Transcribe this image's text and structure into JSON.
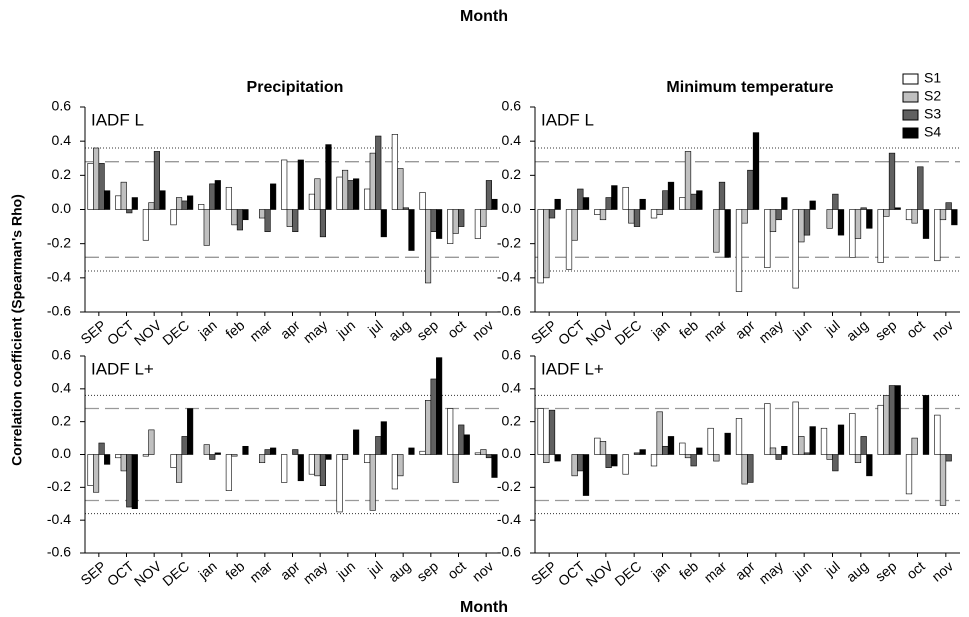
{
  "title": "Month",
  "x_label": "Month",
  "y_label": "Correlation coefficient (Spearman's Rho)",
  "reference_lines": [
    {
      "value": 0.36,
      "style": "dotted"
    },
    {
      "value": -0.36,
      "style": "dotted"
    },
    {
      "value": 0.28,
      "style": "dashed"
    },
    {
      "value": -0.28,
      "style": "dashed"
    }
  ],
  "chart_data": [
    {
      "type": "bar",
      "title": "Precipitation",
      "annotation": "IADF L",
      "categories": [
        "SEP",
        "OCT",
        "NOV",
        "DEC",
        "jan",
        "feb",
        "mar",
        "apr",
        "may",
        "jun",
        "jul",
        "aug",
        "sep",
        "oct",
        "nov"
      ],
      "ylim": [
        -0.6,
        0.6
      ],
      "yticks": [
        0.6,
        0.4,
        0.2,
        {
          "value": 0,
          "label": "0.0"
        },
        -0.2,
        -0.4,
        -0.6
      ],
      "series": [
        {
          "name": "S1",
          "color": "#ffffff",
          "values": [
            0.27,
            0.08,
            -0.18,
            -0.09,
            0.03,
            0.13,
            0.0,
            0.29,
            0.09,
            0.19,
            0.12,
            0.44,
            0.1,
            -0.2,
            -0.17
          ]
        },
        {
          "name": "S2",
          "color": "#c0c0c0",
          "values": [
            0.36,
            0.16,
            0.04,
            0.07,
            -0.21,
            -0.09,
            -0.05,
            -0.1,
            0.18,
            0.23,
            0.33,
            0.24,
            -0.43,
            -0.14,
            -0.1
          ]
        },
        {
          "name": "S3",
          "color": "#606060",
          "values": [
            0.27,
            -0.02,
            0.34,
            0.05,
            0.15,
            -0.12,
            -0.13,
            -0.13,
            -0.16,
            0.17,
            0.43,
            0.01,
            -0.13,
            -0.1,
            0.17
          ]
        },
        {
          "name": "S4",
          "color": "#000000",
          "values": [
            0.11,
            0.07,
            0.11,
            0.08,
            0.17,
            -0.06,
            0.15,
            0.29,
            0.38,
            0.18,
            -0.16,
            -0.24,
            -0.17,
            0.0,
            0.06
          ]
        }
      ]
    },
    {
      "type": "bar",
      "title": "Minimum temperature",
      "annotation": "IADF L",
      "categories": [
        "SEP",
        "OCT",
        "NOV",
        "DEC",
        "jan",
        "feb",
        "mar",
        "apr",
        "may",
        "jun",
        "jul",
        "aug",
        "sep",
        "oct",
        "nov"
      ],
      "ylim": [
        -0.6,
        0.6
      ],
      "yticks": [
        0.6,
        0.4,
        0.2,
        {
          "value": 0,
          "label": "0.0"
        },
        -0.2,
        -0.4,
        -0.6
      ],
      "series": [
        {
          "name": "S1",
          "color": "#ffffff",
          "values": [
            -0.43,
            -0.35,
            -0.03,
            0.13,
            -0.05,
            0.07,
            0.0,
            -0.48,
            -0.34,
            -0.46,
            0.0,
            -0.28,
            -0.31,
            -0.06,
            -0.3
          ]
        },
        {
          "name": "S2",
          "color": "#c0c0c0",
          "values": [
            -0.4,
            -0.18,
            -0.06,
            -0.08,
            -0.03,
            0.34,
            -0.25,
            -0.08,
            -0.13,
            -0.19,
            -0.11,
            -0.17,
            -0.04,
            -0.08,
            -0.06
          ]
        },
        {
          "name": "S3",
          "color": "#606060",
          "values": [
            -0.05,
            0.12,
            0.07,
            -0.1,
            0.11,
            0.09,
            0.16,
            0.23,
            -0.06,
            -0.15,
            0.09,
            0.01,
            0.33,
            0.25,
            0.04
          ]
        },
        {
          "name": "S4",
          "color": "#000000",
          "values": [
            0.06,
            0.07,
            0.14,
            0.06,
            0.16,
            0.11,
            -0.28,
            0.45,
            0.07,
            0.05,
            -0.15,
            -0.11,
            0.01,
            -0.17,
            -0.09
          ]
        }
      ]
    },
    {
      "type": "bar",
      "annotation": "IADF L+",
      "categories": [
        "SEP",
        "OCT",
        "NOV",
        "DEC",
        "jan",
        "feb",
        "mar",
        "apr",
        "may",
        "jun",
        "jul",
        "aug",
        "sep",
        "oct",
        "nov"
      ],
      "ylim": [
        -0.6,
        0.6
      ],
      "yticks": [
        0.6,
        0.4,
        0.2,
        {
          "value": 0,
          "label": "0.0"
        },
        -0.2,
        -0.4,
        -0.6
      ],
      "series": [
        {
          "name": "S1",
          "color": "#ffffff",
          "values": [
            -0.19,
            -0.02,
            -0.01,
            -0.08,
            0.0,
            -0.22,
            0.0,
            -0.17,
            -0.12,
            -0.35,
            -0.05,
            -0.21,
            0.02,
            0.28,
            0.01
          ]
        },
        {
          "name": "S2",
          "color": "#c0c0c0",
          "values": [
            -0.23,
            -0.1,
            0.15,
            -0.17,
            0.06,
            -0.01,
            -0.05,
            0.0,
            -0.13,
            -0.03,
            -0.34,
            -0.13,
            0.33,
            -0.17,
            0.03
          ]
        },
        {
          "name": "S3",
          "color": "#606060",
          "values": [
            0.07,
            -0.32,
            0.0,
            0.11,
            -0.03,
            0.0,
            0.03,
            0.03,
            -0.19,
            0.0,
            0.11,
            0.0,
            0.46,
            0.18,
            -0.02
          ]
        },
        {
          "name": "S4",
          "color": "#000000",
          "values": [
            -0.06,
            -0.33,
            0.0,
            0.28,
            0.01,
            0.05,
            0.04,
            -0.16,
            -0.03,
            0.15,
            0.2,
            0.04,
            0.59,
            0.12,
            -0.14
          ]
        }
      ]
    },
    {
      "type": "bar",
      "annotation": "IADF L+",
      "categories": [
        "SEP",
        "OCT",
        "NOV",
        "DEC",
        "jan",
        "feb",
        "mar",
        "apr",
        "may",
        "jun",
        "jul",
        "aug",
        "sep",
        "oct",
        "nov"
      ],
      "ylim": [
        -0.6,
        0.6
      ],
      "yticks": [
        0.6,
        0.4,
        0.2,
        {
          "value": 0,
          "label": "0.0"
        },
        -0.2,
        -0.4,
        -0.6
      ],
      "series": [
        {
          "name": "S1",
          "color": "#ffffff",
          "values": [
            0.28,
            0.0,
            0.1,
            -0.12,
            -0.07,
            0.07,
            0.16,
            0.22,
            0.31,
            0.32,
            0.16,
            0.25,
            0.3,
            -0.24,
            0.24
          ]
        },
        {
          "name": "S2",
          "color": "#c0c0c0",
          "values": [
            -0.05,
            -0.13,
            0.08,
            0.0,
            0.26,
            -0.02,
            -0.04,
            -0.18,
            0.04,
            0.11,
            -0.03,
            -0.05,
            0.36,
            0.1,
            -0.31
          ]
        },
        {
          "name": "S3",
          "color": "#606060",
          "values": [
            0.27,
            -0.1,
            -0.08,
            0.01,
            0.05,
            -0.07,
            0.0,
            -0.17,
            -0.03,
            0.01,
            -0.1,
            0.11,
            0.42,
            0.0,
            -0.04
          ]
        },
        {
          "name": "S4",
          "color": "#000000",
          "values": [
            -0.04,
            -0.25,
            -0.07,
            0.03,
            0.11,
            0.04,
            0.13,
            0.0,
            0.05,
            0.17,
            0.18,
            -0.13,
            0.42,
            0.36,
            0.0
          ]
        }
      ]
    }
  ]
}
